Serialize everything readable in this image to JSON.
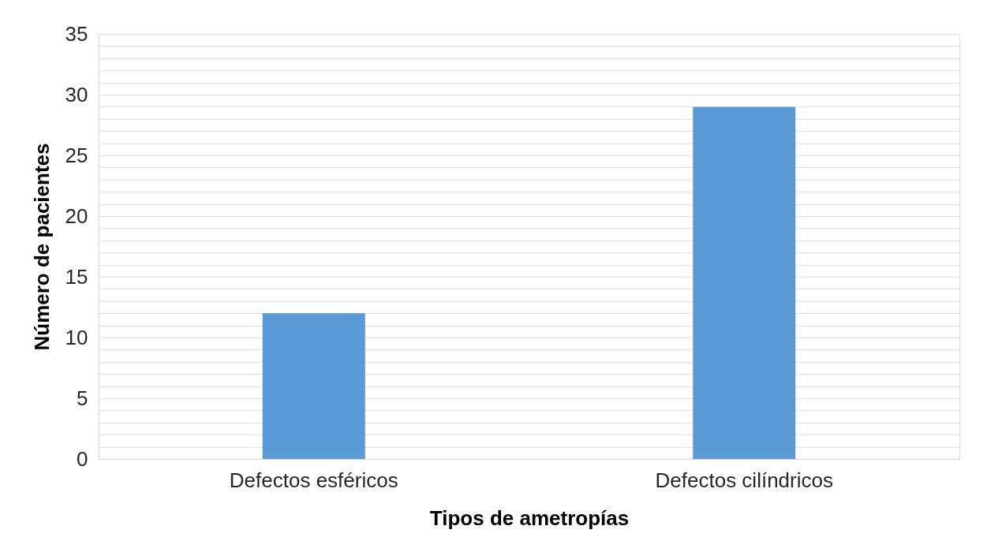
{
  "chart_data": {
    "type": "bar",
    "xlabel": "Tipos de ametropías",
    "ylabel": "Número de pacientes",
    "categories": [
      "Defectos esféricos",
      "Defectos cilíndricos"
    ],
    "values": [
      12,
      29
    ],
    "color": "#5b9bd5",
    "ylim": [
      0,
      35
    ],
    "yticks": [
      0,
      {
        "value": 1,
        "label": null
      },
      {
        "value": 2,
        "label": null
      },
      {
        "value": 3,
        "label": null
      },
      {
        "value": 4,
        "label": null
      },
      5,
      {
        "value": 6,
        "label": null
      },
      {
        "value": 7,
        "label": null
      },
      {
        "value": 8,
        "label": null
      },
      {
        "value": 9,
        "label": null
      },
      10,
      {
        "value": 11,
        "label": null
      },
      {
        "value": 12,
        "label": null
      },
      {
        "value": 13,
        "label": null
      },
      {
        "value": 14,
        "label": null
      },
      15,
      {
        "value": 16,
        "label": null
      },
      {
        "value": 17,
        "label": null
      },
      {
        "value": 18,
        "label": null
      },
      {
        "value": 19,
        "label": null
      },
      20,
      {
        "value": 21,
        "label": null
      },
      {
        "value": 22,
        "label": null
      },
      {
        "value": 23,
        "label": null
      },
      {
        "value": 24,
        "label": null
      },
      25,
      {
        "value": 26,
        "label": null
      },
      {
        "value": 27,
        "label": null
      },
      {
        "value": 28,
        "label": null
      },
      {
        "value": 29,
        "label": null
      },
      30,
      {
        "value": 31,
        "label": null
      },
      {
        "value": 32,
        "label": null
      },
      {
        "value": 33,
        "label": null
      },
      {
        "value": 34,
        "label": null
      },
      35
    ],
    "grid": "y"
  }
}
